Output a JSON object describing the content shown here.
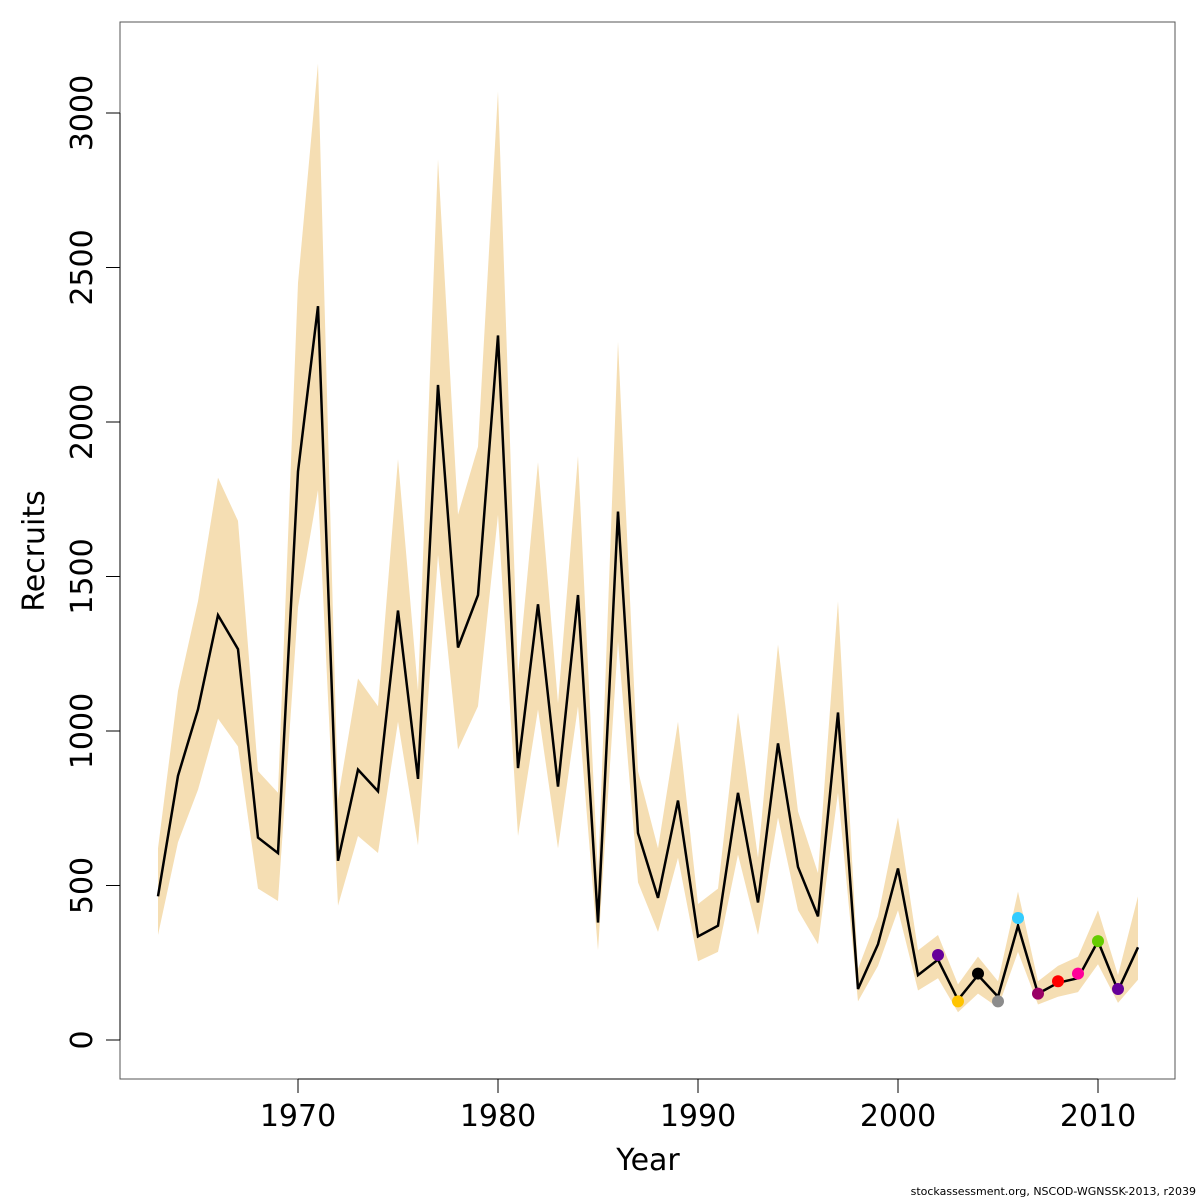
{
  "chart_data": {
    "type": "line",
    "xlabel": "Year",
    "ylabel": "Recruits",
    "xlim": [
      1961,
      2013.8
    ],
    "ylim": [
      -125,
      3280
    ],
    "x_ticks": [
      1970,
      1980,
      1990,
      2000,
      2010
    ],
    "y_ticks": [
      0,
      500,
      1000,
      1500,
      2000,
      2500,
      3000
    ],
    "grid": false,
    "x": [
      1963,
      1964,
      1965,
      1966,
      1967,
      1968,
      1969,
      1970,
      1971,
      1972,
      1973,
      1974,
      1975,
      1976,
      1977,
      1978,
      1979,
      1980,
      1981,
      1982,
      1983,
      1984,
      1985,
      1986,
      1987,
      1988,
      1989,
      1990,
      1991,
      1992,
      1993,
      1994,
      1995,
      1996,
      1997,
      1998,
      1999,
      2000,
      2001,
      2002,
      2003,
      2004,
      2005,
      2006,
      2007,
      2008,
      2009,
      2010,
      2011,
      2012
    ],
    "recruits": [
      465,
      855,
      1070,
      1375,
      1265,
      655,
      605,
      1840,
      2375,
      580,
      875,
      805,
      1390,
      845,
      2120,
      1270,
      1440,
      2280,
      880,
      1410,
      820,
      1440,
      380,
      1710,
      670,
      460,
      775,
      335,
      370,
      800,
      445,
      960,
      560,
      400,
      1060,
      165,
      310,
      555,
      210,
      260,
      130,
      210,
      140,
      370,
      150,
      185,
      200,
      320,
      160,
      300
    ],
    "upper": [
      620,
      1130,
      1420,
      1820,
      1680,
      870,
      800,
      2450,
      3160,
      780,
      1170,
      1080,
      1880,
      1130,
      2850,
      1700,
      1920,
      3070,
      1180,
      1870,
      1090,
      1890,
      530,
      2260,
      870,
      620,
      1030,
      440,
      490,
      1060,
      590,
      1280,
      740,
      540,
      1420,
      230,
      400,
      720,
      290,
      340,
      180,
      270,
      190,
      480,
      190,
      240,
      270,
      420,
      210,
      465
    ],
    "lower": [
      340,
      640,
      810,
      1040,
      950,
      490,
      450,
      1400,
      1780,
      435,
      660,
      605,
      1030,
      630,
      1570,
      940,
      1080,
      1700,
      660,
      1070,
      620,
      1080,
      290,
      1290,
      510,
      350,
      590,
      255,
      285,
      600,
      340,
      720,
      420,
      310,
      800,
      125,
      240,
      420,
      160,
      200,
      90,
      150,
      105,
      285,
      115,
      140,
      155,
      245,
      120,
      195
    ],
    "band_color": "#F5DEB3",
    "line_color": "#000000",
    "retro_points": [
      {
        "x": 2002,
        "y": 275,
        "color": "#66009A"
      },
      {
        "x": 2003,
        "y": 125,
        "color": "#FFC400"
      },
      {
        "x": 2004,
        "y": 215,
        "color": "#000000"
      },
      {
        "x": 2005,
        "y": 125,
        "color": "#8C8C8C"
      },
      {
        "x": 2006,
        "y": 395,
        "color": "#33CCFF"
      },
      {
        "x": 2007,
        "y": 150,
        "color": "#990066"
      },
      {
        "x": 2008,
        "y": 190,
        "color": "#FF0000"
      },
      {
        "x": 2009,
        "y": 215,
        "color": "#FF0099"
      },
      {
        "x": 2010,
        "y": 320,
        "color": "#66CC00"
      },
      {
        "x": 2011,
        "y": 165,
        "color": "#66009A"
      }
    ]
  },
  "footer": "stockassessment.org, NSCOD-WGNSSK-2013, r2039"
}
